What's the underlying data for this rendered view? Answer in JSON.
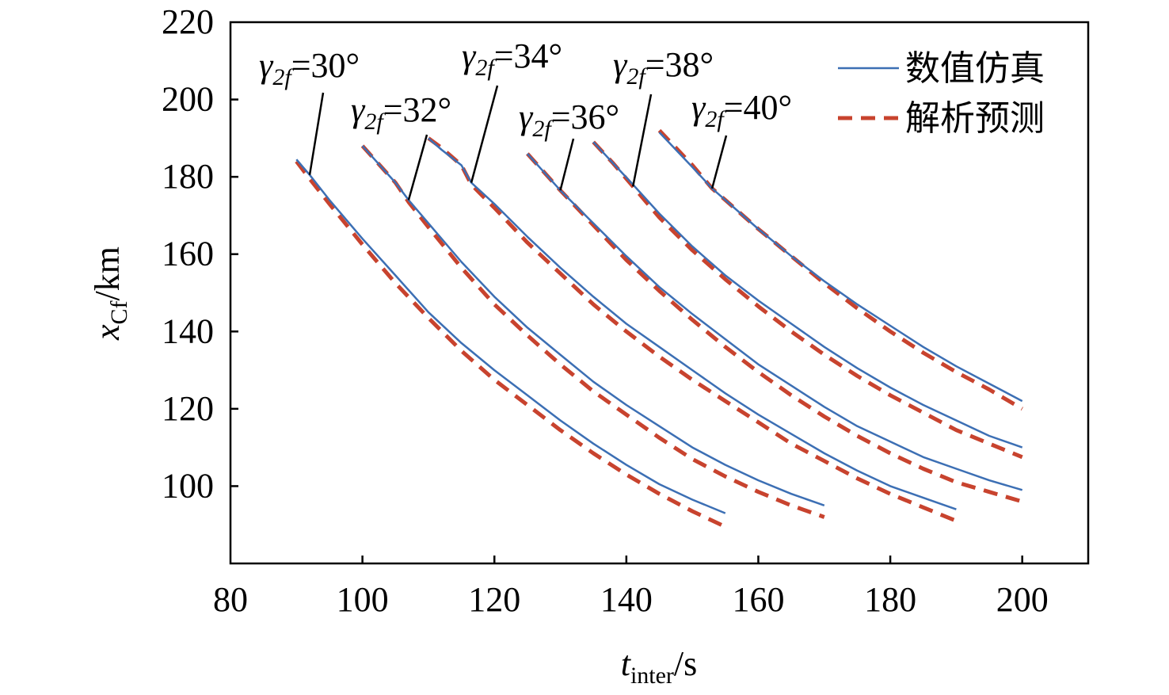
{
  "chart_data": {
    "type": "line",
    "xlabel": {
      "main": "t",
      "sub": "inter",
      "unit": "/s"
    },
    "ylabel": {
      "main": "x",
      "sub": "Cf",
      "unit": "/km"
    },
    "xlim": [
      80,
      210
    ],
    "ylim": [
      80,
      220
    ],
    "xticks": [
      80,
      100,
      120,
      140,
      160,
      180,
      200
    ],
    "yticks": [
      100,
      120,
      140,
      160,
      180,
      200,
      220
    ],
    "grid": false,
    "legend_position": "top-right",
    "legend": [
      {
        "label": "数值仿真",
        "style": "solid",
        "color": "#3c6fb4"
      },
      {
        "label": "解析预测",
        "style": "dashed",
        "color": "#c8432e"
      }
    ],
    "annotations": [
      {
        "greek": "γ",
        "sub": "2f",
        "text": "=30°",
        "target": [
          92,
          180.5
        ]
      },
      {
        "greek": "γ",
        "sub": "2f",
        "text": "=32°",
        "target": [
          107,
          174
        ]
      },
      {
        "greek": "γ",
        "sub": "2f",
        "text": "=34°",
        "target": [
          116.5,
          178.5
        ]
      },
      {
        "greek": "γ",
        "sub": "2f",
        "text": "=36°",
        "target": [
          130,
          176.5
        ]
      },
      {
        "greek": "γ",
        "sub": "2f",
        "text": "=38°",
        "target": [
          141,
          177.5
        ]
      },
      {
        "greek": "γ",
        "sub": "2f",
        "text": "=40°",
        "target": [
          153,
          177
        ]
      }
    ],
    "series": [
      {
        "group": "30°",
        "kind": "simulation",
        "x": [
          90,
          92,
          95,
          100,
          105,
          110,
          115,
          120,
          125,
          130,
          135,
          140,
          145,
          150,
          155
        ],
        "y": [
          184.5,
          180.5,
          174.0,
          164.0,
          154.5,
          145.0,
          137.0,
          130.0,
          123.5,
          117.0,
          111.0,
          105.5,
          100.5,
          96.5,
          93.0
        ]
      },
      {
        "group": "30°",
        "kind": "analytical",
        "x": [
          90,
          92,
          95,
          100,
          105,
          110,
          115,
          120,
          125,
          130,
          135,
          140,
          145,
          150,
          155
        ],
        "y": [
          184.0,
          179.5,
          173.0,
          162.5,
          152.5,
          143.5,
          135.0,
          127.5,
          121.0,
          114.5,
          108.5,
          103.0,
          98.0,
          93.5,
          89.5
        ]
      },
      {
        "group": "32°",
        "kind": "simulation",
        "x": [
          100,
          105,
          107,
          110,
          115,
          120,
          125,
          130,
          135,
          140,
          145,
          150,
          155,
          160,
          165,
          170
        ],
        "y": [
          188.0,
          178.5,
          174.0,
          168.0,
          158.0,
          149.0,
          141.0,
          134.0,
          127.0,
          121.0,
          115.5,
          110.0,
          105.5,
          101.5,
          98.0,
          95.0
        ]
      },
      {
        "group": "32°",
        "kind": "analytical",
        "x": [
          100,
          105,
          107,
          110,
          115,
          120,
          125,
          130,
          135,
          140,
          145,
          150,
          155,
          160,
          165,
          170
        ],
        "y": [
          188.0,
          178.5,
          173.5,
          167.0,
          156.5,
          147.0,
          139.0,
          131.5,
          124.5,
          118.5,
          112.5,
          107.0,
          102.5,
          98.5,
          95.0,
          92.0
        ]
      },
      {
        "group": "34°",
        "kind": "simulation",
        "x": [
          110,
          112,
          115,
          116.5,
          120,
          125,
          130,
          135,
          140,
          145,
          150,
          155,
          160,
          165,
          170,
          175,
          180,
          185,
          190
        ],
        "y": [
          190.0,
          187.0,
          183.0,
          178.5,
          173.0,
          164.5,
          156.5,
          149.0,
          142.0,
          136.0,
          130.0,
          124.0,
          118.5,
          113.5,
          108.5,
          104.0,
          100.0,
          97.0,
          94.0
        ]
      },
      {
        "group": "34°",
        "kind": "analytical",
        "x": [
          110,
          112,
          115,
          116.5,
          120,
          125,
          130,
          135,
          140,
          145,
          150,
          155,
          160,
          165,
          170,
          175,
          180,
          185,
          190
        ],
        "y": [
          190.0,
          187.5,
          183.0,
          178.0,
          172.0,
          163.0,
          155.0,
          147.0,
          140.0,
          133.5,
          127.5,
          122.0,
          116.5,
          111.0,
          106.5,
          102.0,
          98.0,
          94.5,
          91.0
        ]
      },
      {
        "group": "36°",
        "kind": "simulation",
        "x": [
          125,
          130,
          135,
          140,
          145,
          150,
          155,
          160,
          165,
          170,
          175,
          180,
          185,
          190,
          195,
          200
        ],
        "y": [
          186.0,
          176.5,
          168.0,
          159.5,
          151.5,
          144.5,
          138.0,
          131.5,
          126.0,
          120.5,
          115.5,
          111.5,
          107.5,
          104.5,
          101.5,
          99.0
        ]
      },
      {
        "group": "36°",
        "kind": "analytical",
        "x": [
          125,
          130,
          135,
          140,
          145,
          150,
          155,
          160,
          165,
          170,
          175,
          180,
          185,
          190,
          195,
          200
        ],
        "y": [
          186.0,
          176.5,
          167.5,
          158.5,
          150.5,
          143.0,
          136.0,
          129.5,
          123.5,
          118.0,
          113.0,
          108.5,
          104.5,
          101.0,
          98.5,
          96.0
        ]
      },
      {
        "group": "38°",
        "kind": "simulation",
        "x": [
          135,
          138,
          141,
          145,
          150,
          155,
          160,
          165,
          170,
          175,
          180,
          185,
          190,
          195,
          200
        ],
        "y": [
          189.0,
          183.5,
          178.0,
          170.5,
          162.0,
          154.5,
          148.0,
          142.0,
          136.0,
          130.5,
          125.5,
          121.0,
          117.0,
          113.0,
          110.0
        ]
      },
      {
        "group": "38°",
        "kind": "analytical",
        "x": [
          135,
          138,
          141,
          145,
          150,
          155,
          160,
          165,
          170,
          175,
          180,
          185,
          190,
          195,
          200
        ],
        "y": [
          189.0,
          183.5,
          177.5,
          169.5,
          161.0,
          153.5,
          146.5,
          140.0,
          134.0,
          128.5,
          123.5,
          119.0,
          114.5,
          111.0,
          107.5
        ]
      },
      {
        "group": "40°",
        "kind": "simulation",
        "x": [
          145,
          150,
          153,
          155,
          160,
          165,
          170,
          175,
          180,
          185,
          190,
          195,
          200
        ],
        "y": [
          191.5,
          182.5,
          177.0,
          174.0,
          166.5,
          159.5,
          153.0,
          147.0,
          141.5,
          136.0,
          131.0,
          126.5,
          122.0
        ]
      },
      {
        "group": "40°",
        "kind": "analytical",
        "x": [
          145,
          150,
          153,
          155,
          160,
          165,
          170,
          175,
          180,
          185,
          190,
          195,
          200
        ],
        "y": [
          192.0,
          183.0,
          177.0,
          174.0,
          166.5,
          159.5,
          152.5,
          146.0,
          140.0,
          134.5,
          129.5,
          125.0,
          120.0
        ]
      }
    ]
  }
}
